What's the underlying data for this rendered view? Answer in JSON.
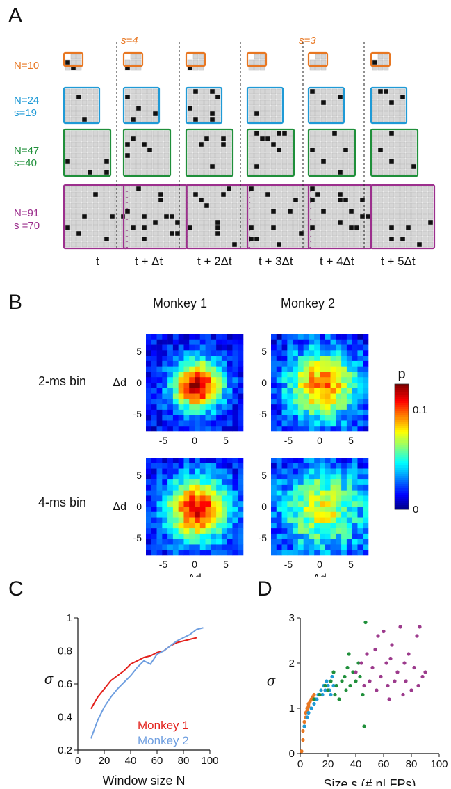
{
  "panels": {
    "a": "A",
    "b": "B",
    "c": "C",
    "d": "D"
  },
  "panelA": {
    "s_top_left": "s=4",
    "s_top_right": "s=3",
    "rows": [
      {
        "n": "N=10",
        "s": ""
      },
      {
        "n": "N=24",
        "s": "s=19"
      },
      {
        "n": "N=47",
        "s": "s=40"
      },
      {
        "n": "N=91",
        "s": "s =70"
      }
    ],
    "times": [
      "t",
      "t + Δt",
      "t + 2Δt",
      "t + 3Δt",
      "t + 4Δt",
      "t + 5Δt"
    ]
  },
  "panelB": {
    "col1": "Monkey 1",
    "col2": "Monkey 2",
    "row1": "2-ms bin",
    "row2": "4-ms bin",
    "axis": "Δd",
    "ticks": [
      "5",
      "0",
      "-5"
    ],
    "xticks": [
      "-5",
      "0",
      "5"
    ],
    "colorbar_label": "p",
    "colorbar_ticks": [
      "0.1",
      "0"
    ]
  },
  "chart_data": [
    {
      "type": "line",
      "xlabel": "Window size N",
      "ylabel": "σ",
      "xlim": [
        0,
        100
      ],
      "ylim": [
        0.2,
        1
      ],
      "xticks": [
        "0",
        "20",
        "40",
        "60",
        "80",
        "100"
      ],
      "yticks": [
        "0.2",
        "0.4",
        "0.6",
        "0.8",
        "1"
      ],
      "series": [
        {
          "name": "Monkey 1",
          "color": "#e3201b",
          "x": [
            10,
            15,
            20,
            25,
            30,
            35,
            40,
            45,
            50,
            55,
            60,
            65,
            70,
            75,
            80,
            85,
            90
          ],
          "y": [
            0.45,
            0.52,
            0.57,
            0.62,
            0.65,
            0.68,
            0.72,
            0.74,
            0.76,
            0.77,
            0.79,
            0.8,
            0.83,
            0.85,
            0.86,
            0.87,
            0.88
          ]
        },
        {
          "name": "Monkey 2",
          "color": "#6f9fe0",
          "x": [
            10,
            15,
            20,
            25,
            30,
            35,
            40,
            45,
            50,
            55,
            60,
            65,
            70,
            75,
            80,
            85,
            90,
            95
          ],
          "y": [
            0.27,
            0.38,
            0.46,
            0.52,
            0.57,
            0.61,
            0.65,
            0.7,
            0.74,
            0.72,
            0.78,
            0.8,
            0.83,
            0.86,
            0.88,
            0.9,
            0.93,
            0.94
          ]
        }
      ]
    },
    {
      "type": "scatter",
      "xlabel": "Size s (# nLFPs)",
      "ylabel": "σ",
      "xlim": [
        0,
        100
      ],
      "ylim": [
        0,
        3
      ],
      "xticks": [
        "0",
        "20",
        "40",
        "60",
        "80",
        "100"
      ],
      "yticks": [
        "0",
        "1",
        "2",
        "3"
      ],
      "series": [
        {
          "name": "N=10",
          "color": "#e87722",
          "x": [
            1,
            2,
            2,
            3,
            3,
            4,
            4,
            5,
            5,
            6,
            6,
            7,
            8,
            9,
            10
          ],
          "y": [
            0.05,
            0.3,
            0.5,
            0.6,
            0.7,
            0.8,
            0.9,
            0.95,
            1.0,
            1.05,
            1.1,
            1.15,
            1.2,
            1.25,
            1.3
          ]
        },
        {
          "name": "N=24",
          "color": "#1f9ad6",
          "x": [
            3,
            5,
            6,
            8,
            10,
            11,
            12,
            13,
            15,
            16,
            17,
            18,
            19,
            20,
            21,
            22,
            23,
            24
          ],
          "y": [
            0.6,
            0.8,
            0.9,
            1.0,
            1.1,
            1.2,
            1.2,
            1.3,
            1.4,
            1.3,
            1.5,
            1.4,
            1.6,
            1.5,
            1.4,
            1.3,
            1.7,
            1.5
          ]
        },
        {
          "name": "N=47",
          "color": "#1f8f3a",
          "x": [
            10,
            14,
            18,
            20,
            22,
            24,
            25,
            26,
            28,
            30,
            32,
            33,
            34,
            35,
            36,
            38,
            40,
            42,
            43,
            45,
            46,
            47
          ],
          "y": [
            1.2,
            1.3,
            1.5,
            1.4,
            1.6,
            1.8,
            1.3,
            1.5,
            1.2,
            1.6,
            1.7,
            1.4,
            1.9,
            2.2,
            1.5,
            1.8,
            1.6,
            2.0,
            1.7,
            1.3,
            0.6,
            2.9
          ]
        },
        {
          "name": "N=91",
          "color": "#9c3a8c",
          "x": [
            40,
            44,
            46,
            48,
            50,
            52,
            54,
            55,
            56,
            58,
            60,
            62,
            63,
            64,
            65,
            66,
            68,
            70,
            72,
            74,
            75,
            76,
            78,
            80,
            82,
            84,
            85,
            86,
            88,
            90
          ],
          "y": [
            1.8,
            2.0,
            1.5,
            2.2,
            1.6,
            1.9,
            2.3,
            1.4,
            2.6,
            1.7,
            2.7,
            2.0,
            1.5,
            1.2,
            2.1,
            2.4,
            1.6,
            1.8,
            2.8,
            1.3,
            2.0,
            1.6,
            2.2,
            1.4,
            1.9,
            2.6,
            1.5,
            2.8,
            1.7,
            1.8
          ]
        }
      ]
    }
  ],
  "colors": {
    "orange": "#e87722",
    "blue": "#1f9ad6",
    "green": "#1f8f3a",
    "purple": "#9c2f8d"
  }
}
